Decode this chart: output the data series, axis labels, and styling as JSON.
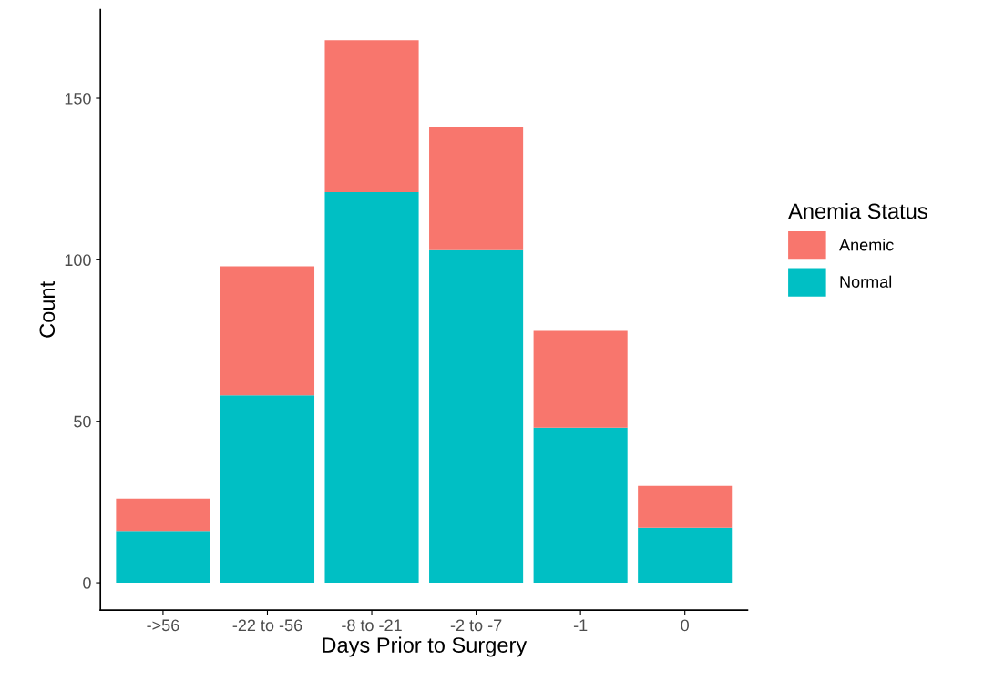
{
  "chart_data": {
    "type": "bar",
    "stacked": true,
    "xlabel": "Days Prior to Surgery",
    "ylabel": "Count",
    "legend_title": "Anemia Status",
    "legend": "right",
    "categories": [
      "->56",
      "-22 to -56",
      "-8 to -21",
      "-2 to -7",
      "-1",
      "0"
    ],
    "series": [
      {
        "name": "Normal",
        "color": "#00bfc4",
        "values": [
          16,
          58,
          121,
          103,
          48,
          17
        ]
      },
      {
        "name": "Anemic",
        "color": "#f8766d",
        "values": [
          10,
          40,
          47,
          38,
          30,
          13
        ]
      }
    ],
    "ylim": [
      -8.5,
      177.5
    ],
    "yticks": [
      0,
      50,
      100,
      150
    ],
    "grid": false
  }
}
